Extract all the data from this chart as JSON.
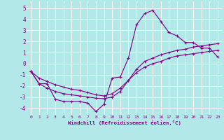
{
  "xlabel": "Windchill (Refroidissement éolien,°C)",
  "bg_color": "#b2e8e8",
  "line_color": "#880088",
  "grid_color": "#ffffff",
  "xlim": [
    -0.5,
    23.5
  ],
  "ylim": [
    -4.6,
    5.6
  ],
  "xticks": [
    0,
    1,
    2,
    3,
    4,
    5,
    6,
    7,
    8,
    9,
    10,
    11,
    12,
    13,
    14,
    15,
    16,
    17,
    18,
    19,
    20,
    21,
    22,
    23
  ],
  "yticks": [
    -4,
    -3,
    -2,
    -1,
    0,
    1,
    2,
    3,
    4,
    5
  ],
  "line1_x": [
    0,
    1,
    2,
    3,
    4,
    5,
    6,
    7,
    8,
    9,
    10,
    11,
    12,
    13,
    14,
    15,
    16,
    17,
    18,
    19,
    20,
    21,
    22,
    23
  ],
  "line1_y": [
    -0.7,
    -1.8,
    -1.8,
    -3.2,
    -3.4,
    -3.4,
    -3.4,
    -3.55,
    -4.3,
    -3.65,
    -1.3,
    -1.2,
    0.5,
    3.5,
    4.5,
    4.8,
    3.8,
    2.8,
    2.5,
    1.9,
    1.9,
    1.4,
    1.4,
    0.6
  ],
  "line2_x": [
    0,
    1,
    2,
    3,
    4,
    5,
    6,
    7,
    8,
    9,
    10,
    11,
    12,
    13,
    14,
    15,
    16,
    17,
    18,
    19,
    20,
    21,
    22,
    23
  ],
  "line2_y": [
    -0.7,
    -1.8,
    -2.2,
    -2.5,
    -2.7,
    -2.8,
    -2.9,
    -3.0,
    -3.1,
    -3.15,
    -3.0,
    -2.5,
    -1.5,
    -0.5,
    0.2,
    0.5,
    0.8,
    1.0,
    1.2,
    1.3,
    1.5,
    1.6,
    1.7,
    1.8
  ],
  "line3_x": [
    0,
    1,
    2,
    3,
    4,
    5,
    6,
    7,
    8,
    9,
    10,
    11,
    12,
    13,
    14,
    15,
    16,
    17,
    18,
    19,
    20,
    21,
    22,
    23
  ],
  "line3_y": [
    -0.7,
    -1.3,
    -1.6,
    -1.9,
    -2.1,
    -2.3,
    -2.4,
    -2.6,
    -2.8,
    -2.9,
    -2.7,
    -2.2,
    -1.5,
    -0.8,
    -0.3,
    0.0,
    0.2,
    0.5,
    0.7,
    0.8,
    0.9,
    1.0,
    1.1,
    1.2
  ]
}
